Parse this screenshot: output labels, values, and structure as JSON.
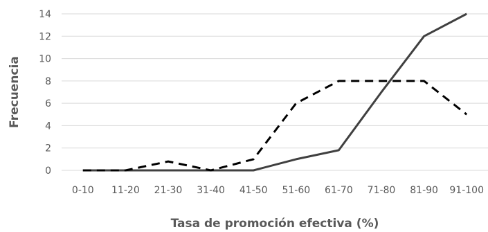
{
  "chart_data": {
    "type": "line",
    "title": "",
    "xlabel": "Tasa de promoción efectiva (%)",
    "ylabel": "Frecuencia",
    "categories": [
      "0-10",
      "11-20",
      "21-30",
      "31-40",
      "41-50",
      "51-60",
      "61-70",
      "71-80",
      "81-90",
      "91-100"
    ],
    "ylim": [
      0,
      14
    ],
    "yticks": [
      0,
      2,
      4,
      6,
      8,
      10,
      12,
      14
    ],
    "grid": true,
    "legend": "none",
    "series": [
      {
        "style": "solid",
        "color": "#404040",
        "values": [
          0,
          0,
          0,
          0,
          0,
          1,
          1.8,
          7,
          12,
          14
        ]
      },
      {
        "style": "dashed",
        "color": "#000000",
        "values": [
          0,
          0,
          0.8,
          0,
          1,
          6,
          8,
          8,
          8,
          5
        ]
      }
    ]
  }
}
